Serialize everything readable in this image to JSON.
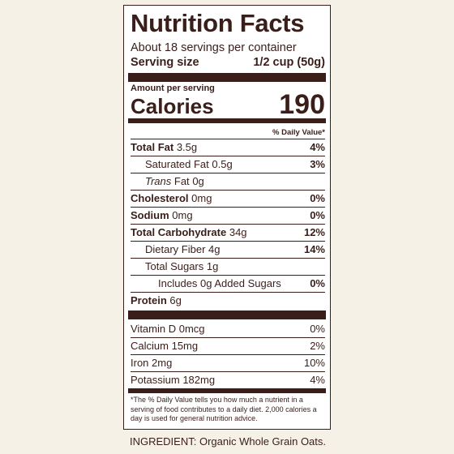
{
  "label": {
    "title": "Nutrition Facts",
    "servings_per_container": "About 18 servings per container",
    "serving_size_label": "Serving size",
    "serving_size_value": "1/2 cup (50g)",
    "amount_per_serving": "Amount per serving",
    "calories_label": "Calories",
    "calories_value": "190",
    "daily_value_header": "% Daily Value*",
    "nutrients": [
      {
        "name": "Total Fat",
        "amount": "3.5g",
        "dv": "4%"
      },
      {
        "name": "Saturated Fat",
        "amount": "0.5g",
        "dv": "3%"
      },
      {
        "name": "Trans",
        "name_suffix": "Fat",
        "amount": "0g",
        "dv": ""
      },
      {
        "name": "Cholesterol",
        "amount": "0mg",
        "dv": "0%"
      },
      {
        "name": "Sodium",
        "amount": "0mg",
        "dv": "0%"
      },
      {
        "name": "Total Carbohydrate",
        "amount": "34g",
        "dv": "12%"
      },
      {
        "name": "Dietary Fiber",
        "amount": "4g",
        "dv": "14%"
      },
      {
        "name": "Total Sugars",
        "amount": "1g",
        "dv": ""
      },
      {
        "name": "Includes 0g Added Sugars",
        "amount": "",
        "dv": "0%"
      },
      {
        "name": "Protein",
        "amount": "6g",
        "dv": ""
      }
    ],
    "vitamins": [
      {
        "name": "Vitamin D",
        "amount": "0mcg",
        "dv": "0%"
      },
      {
        "name": "Calcium",
        "amount": "15mg",
        "dv": "2%"
      },
      {
        "name": "Iron",
        "amount": "2mg",
        "dv": "10%"
      },
      {
        "name": "Potassium",
        "amount": "182mg",
        "dv": "4%"
      }
    ],
    "footnote": "*The % Daily Value tells you how much a nutrient in a serving of food contributes to a daily diet. 2,000 calories a day is used for general nutrition advice."
  },
  "ingredients": "INGREDIENT: Organic Whole Grain Oats.",
  "colors": {
    "ink": "#3a1e1a",
    "background": "#f6f1e7",
    "panel": "#ffffff"
  }
}
